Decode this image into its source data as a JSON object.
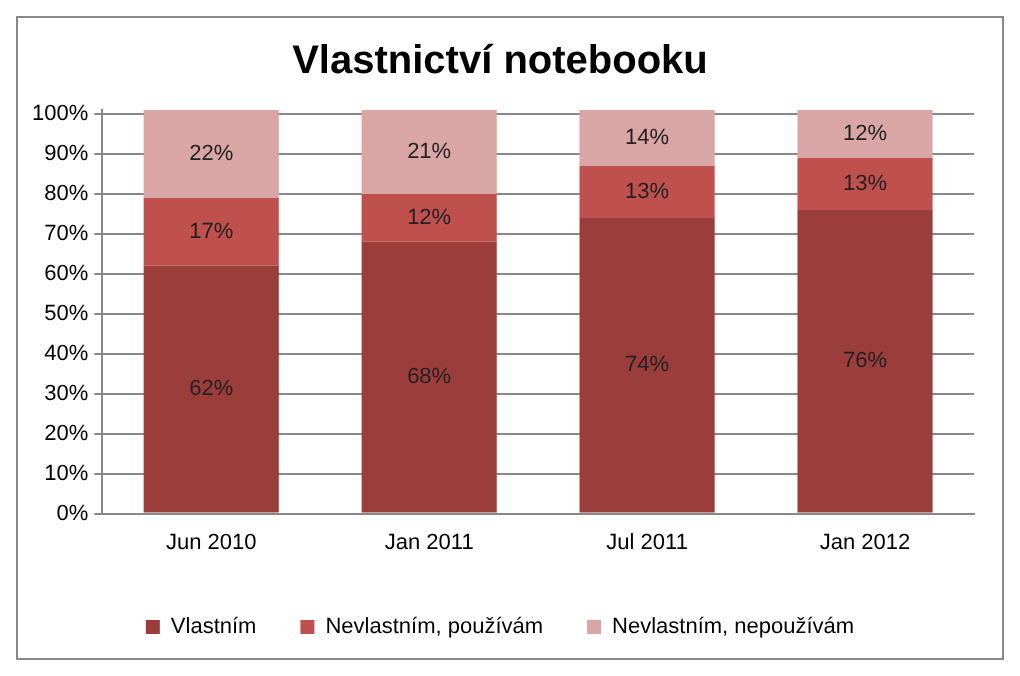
{
  "chart_data": {
    "type": "bar",
    "title": "Vlastnictví notebooku",
    "categories": [
      "Jun 2010",
      "Jan 2011",
      "Jul 2011",
      "Jan 2012"
    ],
    "stacked": true,
    "series": [
      {
        "name": "Vlastním",
        "color": "#9b3d3b",
        "values": [
          62,
          68,
          74,
          76
        ],
        "value_labels": [
          "62%",
          "68%",
          "74%",
          "76%"
        ]
      },
      {
        "name": "Nevlastním, používám",
        "color": "#c0504d",
        "values": [
          17,
          12,
          13,
          13
        ],
        "value_labels": [
          "17%",
          "12%",
          "13%",
          "13%"
        ]
      },
      {
        "name": "Nevlastním, nepoužívám",
        "color": "#d9a5a5",
        "values": [
          22,
          21,
          14,
          12
        ],
        "value_labels": [
          "22%",
          "21%",
          "14%",
          "12%"
        ]
      }
    ],
    "ylim": [
      0,
      101
    ],
    "yticks": [
      {
        "value": 0,
        "label": "0%"
      },
      {
        "value": 10,
        "label": "10%"
      },
      {
        "value": 20,
        "label": "20%"
      },
      {
        "value": 30,
        "label": "30%"
      },
      {
        "value": 40,
        "label": "40%"
      },
      {
        "value": 50,
        "label": "50%"
      },
      {
        "value": 60,
        "label": "60%"
      },
      {
        "value": 70,
        "label": "70%"
      },
      {
        "value": 80,
        "label": "80%"
      },
      {
        "value": 90,
        "label": "90%"
      },
      {
        "value": 100,
        "label": "100%"
      }
    ],
    "grid": "y",
    "legend": "bottom"
  }
}
